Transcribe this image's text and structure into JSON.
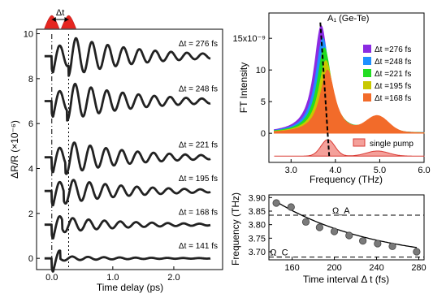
{
  "chart_data": [
    {
      "type": "line",
      "panel": "left",
      "xlabel": "Time delay (ps)",
      "ylabel": "ΔR/R (×10⁻⁶)",
      "xlim": [
        -0.25,
        2.8
      ],
      "ylim": [
        -0.5,
        10.2
      ],
      "xticks": [
        "0.0",
        "1.0",
        "2.0"
      ],
      "yticks": [
        "0",
        "2",
        "4",
        "6",
        "8",
        "10"
      ],
      "pulse_label": "Δt",
      "series": [
        {
          "label": "Δt = 141 fs",
          "dt_fs": 141,
          "offset": 0
        },
        {
          "label": "Δt = 168 fs",
          "dt_fs": 168,
          "offset": 1.5
        },
        {
          "label": "Δt = 195 fs",
          "dt_fs": 195,
          "offset": 3
        },
        {
          "label": "Δt = 221 fs",
          "dt_fs": 221,
          "offset": 4.5
        },
        {
          "label": "Δt = 248 fs",
          "dt_fs": 248,
          "offset": 7
        },
        {
          "label": "Δt = 276 fs",
          "dt_fs": 276,
          "offset": 9
        }
      ]
    },
    {
      "type": "area",
      "panel": "top-right",
      "ylabel": "FT Intensity",
      "xlabel": "Frequency (THz)",
      "xlim": [
        2.5,
        6.0
      ],
      "xticks": [
        "3.0",
        "4.0",
        "5.0",
        "6.0"
      ],
      "yticks": [
        "0",
        "5",
        "10",
        "15x10⁻⁹"
      ],
      "peak_annotation": "A₁ (Ge-Te)",
      "legend_position": "right",
      "series": [
        {
          "name": "Δt =276 fs",
          "color": "#8b2be2",
          "peak": 17
        },
        {
          "name": "Δt =248 fs",
          "color": "#1e90ff",
          "peak": 15
        },
        {
          "name": "Δt =221 fs",
          "color": "#22dd22",
          "peak": 13.5
        },
        {
          "name": "Δt =195 fs",
          "color": "#c8c800",
          "peak": 11.5
        },
        {
          "name": "Δt =168 fs",
          "color": "#f26b2a",
          "peak": 10
        },
        {
          "name": "single pump",
          "color": "#e84a4a",
          "peak": 1
        }
      ]
    },
    {
      "type": "scatter",
      "panel": "bottom-right",
      "xlabel": "Time interval Δ t (fs)",
      "ylabel": "Frequency (THz)",
      "xlim": [
        138,
        285
      ],
      "ylim": [
        3.67,
        3.91
      ],
      "xticks": [
        "160",
        "200",
        "240",
        "280"
      ],
      "yticks": [
        "3.70",
        "3.75",
        "3.80",
        "3.85",
        "3.90"
      ],
      "omega_A_label": "Ω_A",
      "omega_C_label": "Ω_C",
      "omega_A": 3.835,
      "omega_C": 3.68,
      "x": [
        145,
        159,
        173,
        186,
        200,
        214,
        227,
        241,
        255,
        278
      ],
      "y": [
        3.88,
        3.865,
        3.81,
        3.79,
        3.775,
        3.76,
        3.74,
        3.73,
        3.72,
        3.7
      ]
    }
  ]
}
